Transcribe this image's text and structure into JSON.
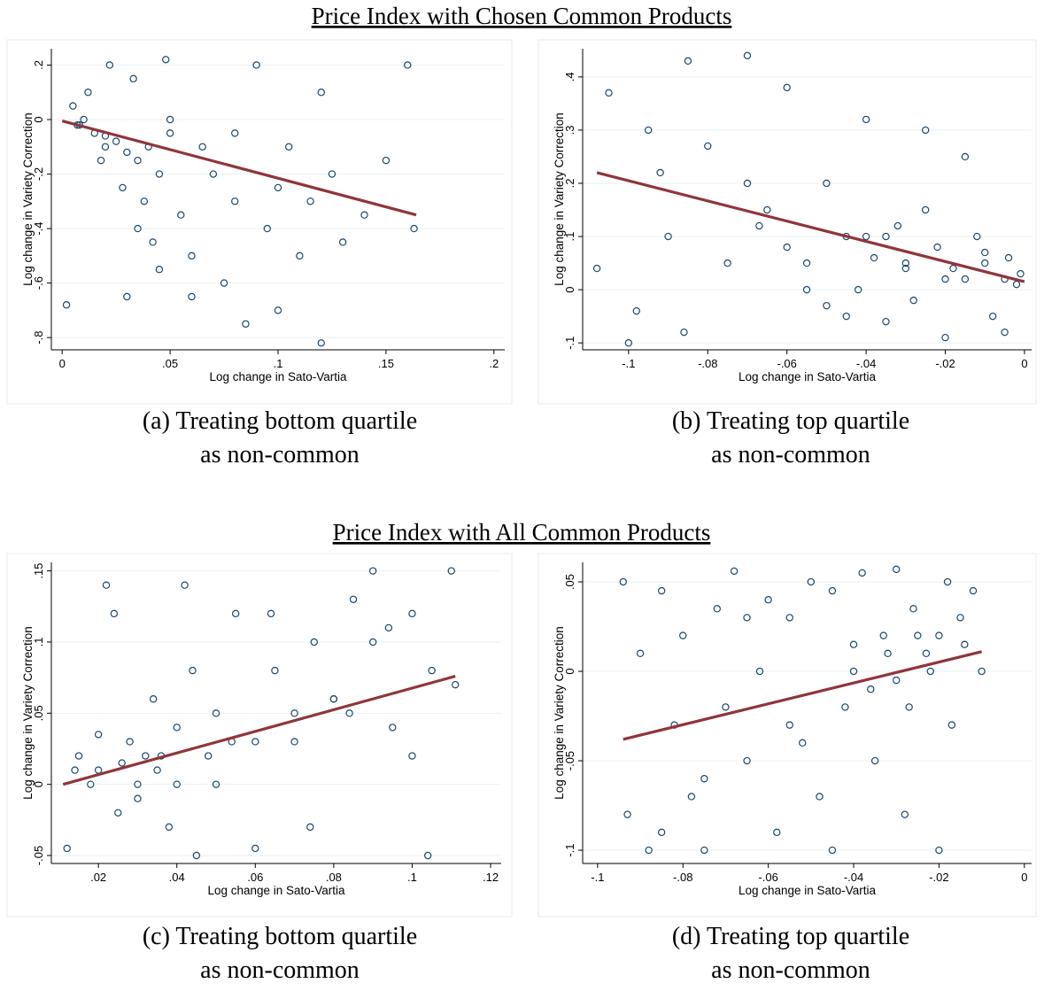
{
  "section_titles": [
    "Price Index with Chosen Common Products",
    "Price Index with All Common Products"
  ],
  "chart_data": [
    {
      "type": "scatter",
      "caption": [
        "(a) Treating bottom quartile",
        "as non-common"
      ],
      "x_label": "Log change in Sato-Vartia",
      "y_label": "Log change in Variety Correction",
      "marker_color": "#1a476f",
      "fit_color": "#90353b",
      "grid": true,
      "xlim": [
        -0.005,
        0.205
      ],
      "ylim": [
        -0.845,
        0.26
      ],
      "xticks": [
        0,
        {
          "value": 0.05,
          "label": ".05"
        },
        {
          "value": 0.1,
          "label": ".1"
        },
        {
          "value": 0.15,
          "label": ".15"
        },
        {
          "value": 0.2,
          "label": ".2"
        }
      ],
      "yticks": [
        {
          "value": 0.2,
          "label": ".2"
        },
        0,
        {
          "value": -0.2,
          "label": "-.2"
        },
        {
          "value": -0.4,
          "label": "-.4"
        },
        {
          "value": -0.6,
          "label": "-.6"
        },
        {
          "value": -0.8,
          "label": "-.8"
        }
      ],
      "x": [
        0.002,
        0.005,
        0.01,
        0.015,
        0.02,
        0.025,
        0.03,
        0.035,
        0.04,
        0.045,
        0.05,
        0.008,
        0.012,
        0.018,
        0.022,
        0.028,
        0.033,
        0.038,
        0.042,
        0.048,
        0.055,
        0.06,
        0.065,
        0.07,
        0.075,
        0.08,
        0.085,
        0.09,
        0.095,
        0.1,
        0.105,
        0.11,
        0.115,
        0.12,
        0.125,
        0.13,
        0.14,
        0.15,
        0.16,
        0.163,
        0.03,
        0.045,
        0.06,
        0.08,
        0.1,
        0.12,
        0.007,
        0.02,
        0.035,
        0.05
      ],
      "y": [
        -0.68,
        0.05,
        0.0,
        -0.05,
        -0.1,
        -0.08,
        -0.12,
        -0.15,
        -0.1,
        -0.2,
        -0.05,
        -0.02,
        0.1,
        -0.15,
        0.2,
        -0.25,
        0.15,
        -0.3,
        -0.45,
        0.22,
        -0.35,
        -0.5,
        -0.1,
        -0.2,
        -0.6,
        -0.3,
        -0.75,
        0.2,
        -0.4,
        -0.25,
        -0.1,
        -0.5,
        -0.3,
        -0.82,
        -0.2,
        -0.45,
        -0.35,
        -0.15,
        0.2,
        -0.4,
        -0.65,
        -0.55,
        -0.65,
        -0.05,
        -0.7,
        0.1,
        -0.02,
        -0.06,
        -0.4,
        0.0
      ],
      "fit": {
        "x": [
          0,
          0.164
        ],
        "y": [
          -0.005,
          -0.35
        ]
      }
    },
    {
      "type": "scatter",
      "caption": [
        "(b) Treating top quartile",
        "as non-common"
      ],
      "x_label": "Log change in Sato-Vartia",
      "y_label": "Log change in Variety Correction",
      "marker_color": "#1a476f",
      "fit_color": "#90353b",
      "grid": true,
      "xlim": [
        -0.1116,
        0.0018
      ],
      "ylim": [
        -0.113,
        0.453
      ],
      "xticks": [
        {
          "value": -0.1,
          "label": "-.1"
        },
        {
          "value": -0.08,
          "label": "-.08"
        },
        {
          "value": -0.06,
          "label": "-.06"
        },
        {
          "value": -0.04,
          "label": "-.04"
        },
        {
          "value": -0.02,
          "label": "-.02"
        },
        0
      ],
      "yticks": [
        {
          "value": 0.4,
          "label": ".4"
        },
        {
          "value": 0.3,
          "label": ".3"
        },
        {
          "value": 0.2,
          "label": ".2"
        },
        {
          "value": 0.1,
          "label": ".1"
        },
        0,
        {
          "value": -0.1,
          "label": "-.1"
        }
      ],
      "x": [
        -0.108,
        -0.105,
        -0.1,
        -0.095,
        -0.09,
        -0.085,
        -0.08,
        -0.075,
        -0.07,
        -0.065,
        -0.06,
        -0.055,
        -0.05,
        -0.045,
        -0.04,
        -0.035,
        -0.03,
        -0.025,
        -0.02,
        -0.015,
        -0.01,
        -0.005,
        -0.002,
        -0.001,
        -0.038,
        -0.032,
        -0.028,
        -0.022,
        -0.018,
        -0.012,
        -0.008,
        -0.004,
        -0.045,
        -0.05,
        -0.06,
        -0.07,
        -0.086,
        -0.092,
        -0.098,
        -0.067,
        -0.042,
        -0.035,
        -0.025,
        -0.015,
        -0.01,
        -0.03,
        -0.02,
        -0.005,
        -0.04,
        -0.055
      ],
      "y": [
        0.04,
        0.37,
        -0.1,
        0.3,
        0.1,
        0.43,
        0.27,
        0.05,
        0.44,
        0.15,
        0.38,
        0.0,
        0.2,
        -0.05,
        0.32,
        0.1,
        0.05,
        0.3,
        0.02,
        0.25,
        0.05,
        -0.08,
        0.01,
        0.03,
        0.06,
        0.12,
        -0.02,
        0.08,
        0.04,
        0.1,
        -0.05,
        0.06,
        0.1,
        -0.03,
        0.08,
        0.2,
        -0.08,
        0.22,
        -0.04,
        0.12,
        0.0,
        -0.06,
        0.15,
        0.02,
        0.07,
        0.04,
        -0.09,
        0.02,
        0.1,
        0.05
      ],
      "fit": {
        "x": [
          -0.108,
          0
        ],
        "y": [
          0.22,
          0.015
        ]
      }
    },
    {
      "type": "scatter",
      "caption": [
        "(c) Treating bottom quartile",
        "as non-common"
      ],
      "x_label": "Log change in Sato-Vartia",
      "y_label": "Log change in Variety Correction",
      "marker_color": "#1a476f",
      "fit_color": "#90353b",
      "grid": true,
      "xlim": [
        0.008,
        0.1227
      ],
      "ylim": [
        -0.0556,
        0.156
      ],
      "xticks": [
        {
          "value": 0.02,
          "label": ".02"
        },
        {
          "value": 0.04,
          "label": ".04"
        },
        {
          "value": 0.06,
          "label": ".06"
        },
        {
          "value": 0.08,
          "label": ".08"
        },
        {
          "value": 0.1,
          "label": ".1"
        },
        {
          "value": 0.12,
          "label": ".12"
        }
      ],
      "yticks": [
        {
          "value": 0.15,
          "label": ".15"
        },
        {
          "value": 0.1,
          "label": ".1"
        },
        {
          "value": 0.05,
          "label": ".05"
        },
        0,
        {
          "value": -0.05,
          "label": "-.05"
        }
      ],
      "x": [
        0.012,
        0.015,
        0.018,
        0.02,
        0.022,
        0.025,
        0.028,
        0.03,
        0.032,
        0.035,
        0.038,
        0.04,
        0.042,
        0.045,
        0.048,
        0.05,
        0.055,
        0.06,
        0.065,
        0.07,
        0.075,
        0.08,
        0.085,
        0.09,
        0.095,
        0.1,
        0.105,
        0.11,
        0.111,
        0.014,
        0.024,
        0.034,
        0.044,
        0.054,
        0.064,
        0.074,
        0.084,
        0.094,
        0.104,
        0.02,
        0.03,
        0.04,
        0.05,
        0.06,
        0.07,
        0.08,
        0.09,
        0.1,
        0.026,
        0.036
      ],
      "y": [
        -0.045,
        0.02,
        0.0,
        0.01,
        0.14,
        -0.02,
        0.03,
        0.0,
        0.02,
        0.01,
        -0.03,
        0.04,
        0.14,
        -0.05,
        0.02,
        0.05,
        0.12,
        -0.045,
        0.08,
        0.03,
        0.1,
        0.06,
        0.13,
        0.15,
        0.04,
        0.12,
        0.08,
        0.15,
        0.07,
        0.01,
        0.12,
        0.06,
        0.08,
        0.03,
        0.12,
        -0.03,
        0.05,
        0.11,
        -0.05,
        0.035,
        -0.01,
        0.0,
        0.0,
        0.03,
        0.05,
        0.06,
        0.1,
        0.02,
        0.015,
        0.02
      ],
      "fit": {
        "x": [
          0.011,
          0.111
        ],
        "y": [
          0.0,
          0.076
        ]
      }
    },
    {
      "type": "scatter",
      "caption": [
        "(d) Treating top quartile",
        "as non-common"
      ],
      "x_label": "Log change in Sato-Vartia",
      "y_label": "Log change in Variety Correction",
      "marker_color": "#1a476f",
      "fit_color": "#90353b",
      "grid": true,
      "xlim": [
        -0.1035,
        0.0017
      ],
      "ylim": [
        -0.1074,
        0.0609
      ],
      "xticks": [
        {
          "value": -0.1,
          "label": "-.1"
        },
        {
          "value": -0.08,
          "label": "-.08"
        },
        {
          "value": -0.06,
          "label": "-.06"
        },
        {
          "value": -0.04,
          "label": "-.04"
        },
        {
          "value": -0.02,
          "label": "-.02"
        },
        0
      ],
      "yticks": [
        {
          "value": 0.05,
          "label": ".05"
        },
        0,
        {
          "value": -0.05,
          "label": "-.05"
        },
        {
          "value": -0.1,
          "label": "-.1"
        }
      ],
      "x": [
        -0.094,
        -0.093,
        -0.09,
        -0.088,
        -0.085,
        -0.082,
        -0.08,
        -0.078,
        -0.075,
        -0.072,
        -0.07,
        -0.068,
        -0.065,
        -0.062,
        -0.06,
        -0.058,
        -0.055,
        -0.052,
        -0.05,
        -0.048,
        -0.045,
        -0.042,
        -0.04,
        -0.038,
        -0.035,
        -0.032,
        -0.03,
        -0.028,
        -0.025,
        -0.022,
        -0.02,
        -0.018,
        -0.015,
        -0.012,
        -0.01,
        -0.036,
        -0.033,
        -0.027,
        -0.023,
        -0.017,
        -0.04,
        -0.03,
        -0.02,
        -0.045,
        -0.055,
        -0.065,
        -0.075,
        -0.085,
        -0.014,
        -0.026
      ],
      "y": [
        0.05,
        -0.08,
        0.01,
        -0.1,
        0.045,
        -0.03,
        0.02,
        -0.07,
        -0.06,
        0.035,
        -0.02,
        0.056,
        -0.05,
        0.0,
        0.04,
        -0.09,
        0.03,
        -0.04,
        0.05,
        -0.07,
        0.045,
        -0.02,
        0.0,
        0.055,
        -0.05,
        0.01,
        0.057,
        -0.08,
        0.02,
        0.0,
        -0.1,
        0.05,
        0.03,
        0.045,
        0.0,
        -0.01,
        0.02,
        -0.02,
        0.01,
        -0.03,
        0.015,
        -0.005,
        0.02,
        -0.1,
        -0.03,
        0.03,
        -0.1,
        -0.09,
        0.015,
        0.035
      ],
      "fit": {
        "x": [
          -0.094,
          -0.01
        ],
        "y": [
          -0.038,
          0.011
        ]
      }
    }
  ]
}
